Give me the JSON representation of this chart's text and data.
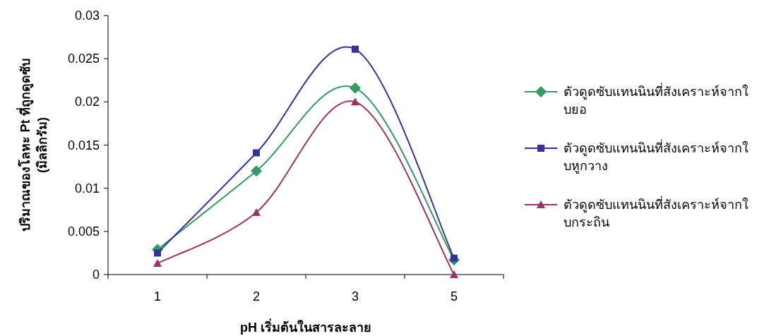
{
  "chart_data": {
    "type": "line",
    "xlabel": "pH เริ่มต้นในสารละลาย",
    "ylabel": "ปริมาณของโลหะ Pt ที่ถูกดูดซับ\n(มิลลิกรัม)",
    "categories": [
      "1",
      "2",
      "3",
      "5"
    ],
    "ylim": [
      0,
      0.03
    ],
    "yticks": [
      0,
      0.005,
      0.01,
      0.015,
      0.02,
      0.025,
      0.03
    ],
    "grid": false,
    "legend": "right",
    "line_style": "solid",
    "series": [
      {
        "name": "ตัวดูดซับแทนนินที่สังเคราะห์จากใบยอ",
        "color": "#339966",
        "marker": "diamond",
        "values": [
          0.0029,
          0.012,
          0.0216,
          0.0017
        ]
      },
      {
        "name": "ตัวดูดซับแทนนินที่สังเคราะห์จากใบหูกวาง",
        "color": "#333399",
        "marker": "square",
        "values": [
          0.0025,
          0.0141,
          0.0261,
          0.0019
        ]
      },
      {
        "name": "ตัวดูดซับแทนนินที่สังเคราะห์จากใบกระถิน",
        "color": "#993366",
        "marker": "triangle",
        "values": [
          0.0013,
          0.0072,
          0.02,
          0
        ]
      }
    ]
  }
}
